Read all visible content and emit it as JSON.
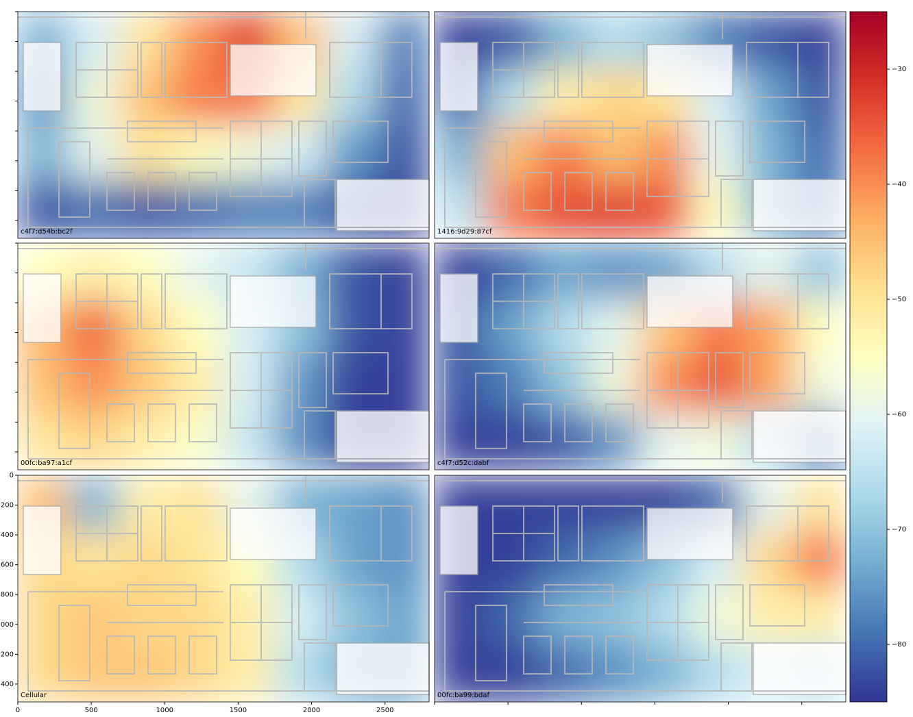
{
  "chart_data": {
    "type": "heatmap",
    "colormap": [
      "#313695",
      "#4575b4",
      "#74add1",
      "#abd9e9",
      "#e0f3f8",
      "#ffffbf",
      "#fee090",
      "#fdae61",
      "#f46d43",
      "#d73027",
      "#a50026"
    ],
    "xlim": [
      0,
      2800
    ],
    "ylim": [
      1520,
      0
    ],
    "xticks": [
      0,
      500,
      1000,
      1500,
      2000,
      2500
    ],
    "yticks": [
      0,
      200,
      400,
      600,
      800,
      1000,
      1200,
      1400
    ],
    "colorbar": {
      "clim": [
        -85,
        -25
      ],
      "ticks": [
        {
          "value": -30,
          "label": "−30"
        },
        {
          "value": -40,
          "label": "−40"
        },
        {
          "value": -50,
          "label": "−50"
        },
        {
          "value": -60,
          "label": "−60"
        },
        {
          "value": -70,
          "label": "−70"
        },
        {
          "value": -80,
          "label": "−80"
        }
      ]
    },
    "panels": [
      {
        "label": "c4f7:d54b:bc2f",
        "values": [
          [
            -72,
            -62,
            -50,
            -40,
            -33,
            -45,
            -62,
            -78
          ],
          [
            -75,
            -58,
            -45,
            -38,
            -38,
            -50,
            -66,
            -80
          ],
          [
            -72,
            -60,
            -50,
            -55,
            -58,
            -62,
            -75,
            -82
          ],
          [
            -82,
            -80,
            -82,
            -80,
            -78,
            -78,
            -82,
            -84
          ]
        ]
      },
      {
        "label": "1416:9d29:87cf",
        "values": [
          [
            -84,
            -82,
            -72,
            -66,
            -70,
            -78,
            -82,
            -84
          ],
          [
            -80,
            -66,
            -52,
            -48,
            -50,
            -62,
            -74,
            -82
          ],
          [
            -72,
            -45,
            -38,
            -45,
            -40,
            -60,
            -72,
            -80
          ],
          [
            -65,
            -38,
            -34,
            -33,
            -35,
            -55,
            -72,
            -78
          ]
        ]
      },
      {
        "label": "00fc:ba97:a1cf",
        "values": [
          [
            -55,
            -52,
            -55,
            -60,
            -64,
            -72,
            -82,
            -84
          ],
          [
            -44,
            -36,
            -48,
            -55,
            -62,
            -70,
            -82,
            -84
          ],
          [
            -45,
            -40,
            -46,
            -52,
            -62,
            -75,
            -84,
            -84
          ],
          [
            -50,
            -48,
            -52,
            -56,
            -64,
            -76,
            -84,
            -84
          ]
        ]
      },
      {
        "label": "c4f7:d52c:dabf",
        "values": [
          [
            -84,
            -80,
            -74,
            -76,
            -74,
            -66,
            -60,
            -70
          ],
          [
            -82,
            -74,
            -66,
            -60,
            -46,
            -38,
            -42,
            -55
          ],
          [
            -82,
            -78,
            -70,
            -58,
            -40,
            -35,
            -42,
            -58
          ],
          [
            -84,
            -84,
            -82,
            -76,
            -60,
            -58,
            -66,
            -78
          ]
        ]
      },
      {
        "label": "Cellular",
        "values": [
          [
            -45,
            -72,
            -52,
            -50,
            -60,
            -72,
            -74,
            -76
          ],
          [
            -48,
            -50,
            -48,
            -50,
            -55,
            -66,
            -74,
            -76
          ],
          [
            -48,
            -46,
            -48,
            -48,
            -52,
            -62,
            -70,
            -74
          ],
          [
            -48,
            -46,
            -46,
            -48,
            -52,
            -66,
            -72,
            -74
          ]
        ]
      },
      {
        "label": "00fc:ba99:bdaf",
        "values": [
          [
            -84,
            -84,
            -84,
            -84,
            -84,
            -80,
            -60,
            -50
          ],
          [
            -84,
            -84,
            -80,
            -76,
            -70,
            -62,
            -48,
            -38
          ],
          [
            -84,
            -80,
            -72,
            -70,
            -66,
            -58,
            -52,
            -52
          ],
          [
            -84,
            -84,
            -80,
            -76,
            -72,
            -66,
            -62,
            -65
          ]
        ]
      }
    ]
  }
}
